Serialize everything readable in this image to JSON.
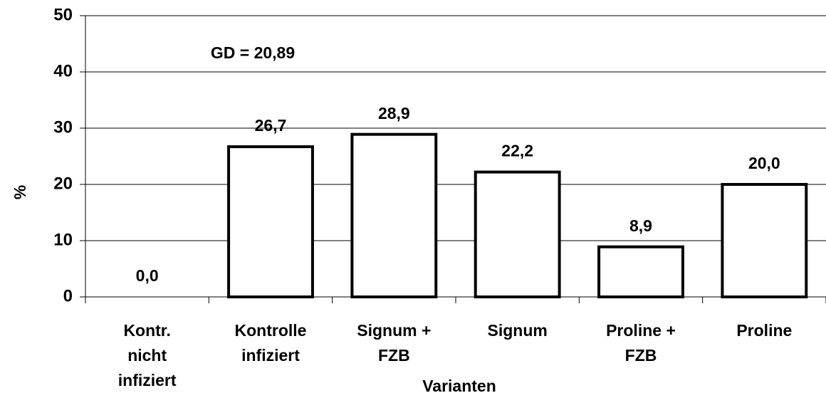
{
  "chart_data": {
    "type": "bar",
    "categories": [
      "Kontr.\nnicht\ninfiziert",
      "Kontrolle\ninfiziert",
      "Signum +\nFZB",
      "Signum",
      "Proline +\nFZB",
      "Proline"
    ],
    "values": [
      0.0,
      26.7,
      28.9,
      22.2,
      8.9,
      20.0
    ],
    "value_labels": [
      "0,0",
      "26,7",
      "28,9",
      "22,2",
      "8,9",
      "20,0"
    ],
    "color": "#ffffff",
    "ylim": [
      0,
      50
    ],
    "yticks": [
      0,
      10,
      20,
      30,
      40,
      50
    ],
    "grid": true,
    "y_label": "%",
    "x_label": "Varianten",
    "annotation": "GD = 20,89"
  }
}
